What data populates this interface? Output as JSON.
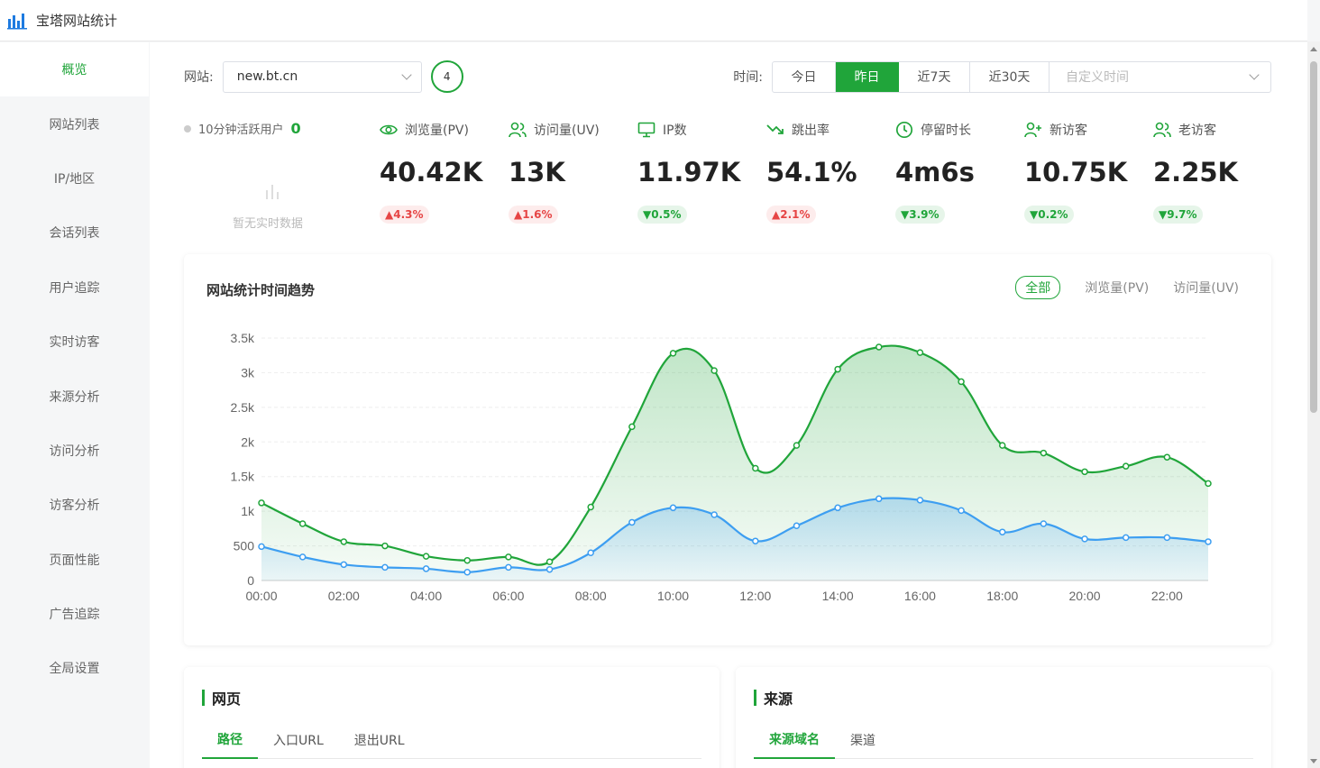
{
  "app": {
    "title": "宝塔网站统计"
  },
  "sidebar": {
    "items": [
      {
        "label": "概览",
        "active": true
      },
      {
        "label": "网站列表"
      },
      {
        "label": "IP/地区"
      },
      {
        "label": "会话列表"
      },
      {
        "label": "用户追踪"
      },
      {
        "label": "实时访客"
      },
      {
        "label": "来源分析"
      },
      {
        "label": "访问分析"
      },
      {
        "label": "访客分析"
      },
      {
        "label": "页面性能"
      },
      {
        "label": "广告追踪"
      },
      {
        "label": "全局设置"
      }
    ]
  },
  "toolbar": {
    "site_label": "网站:",
    "site_value": "new.bt.cn",
    "site_count": "4",
    "time_label": "时间:",
    "time_options": [
      "今日",
      "昨日",
      "近7天",
      "近30天"
    ],
    "time_active": "昨日",
    "custom_placeholder": "自定义时间"
  },
  "live": {
    "label": "10分钟活跃用户",
    "count": "0",
    "no_data": "暂无实时数据"
  },
  "metrics": [
    {
      "label": "浏览量(PV)",
      "icon": "eye-icon",
      "value": "40.42K",
      "change": "▲4.3%",
      "trend": "up"
    },
    {
      "label": "访问量(UV)",
      "icon": "users-icon",
      "value": "13K",
      "change": "▲1.6%",
      "trend": "up"
    },
    {
      "label": "IP数",
      "icon": "monitor-icon",
      "value": "11.97K",
      "change": "▼0.5%",
      "trend": "down"
    },
    {
      "label": "跳出率",
      "icon": "trend-down-icon",
      "value": "54.1%",
      "change": "▲2.1%",
      "trend": "up"
    },
    {
      "label": "停留时长",
      "icon": "clock-icon",
      "value": "4m6s",
      "change": "▼3.9%",
      "trend": "down"
    },
    {
      "label": "新访客",
      "icon": "user-plus-icon",
      "value": "10.75K",
      "change": "▼0.2%",
      "trend": "down"
    },
    {
      "label": "老访客",
      "icon": "users-icon",
      "value": "2.25K",
      "change": "▼9.7%",
      "trend": "down"
    }
  ],
  "chart_card": {
    "title": "网站统计时间趋势",
    "filters": [
      "全部",
      "浏览量(PV)",
      "访问量(UV)"
    ],
    "filter_active": "全部"
  },
  "chart_data": {
    "type": "area",
    "x": [
      "00:00",
      "01:00",
      "02:00",
      "03:00",
      "04:00",
      "05:00",
      "06:00",
      "07:00",
      "08:00",
      "09:00",
      "10:00",
      "11:00",
      "12:00",
      "13:00",
      "14:00",
      "15:00",
      "16:00",
      "17:00",
      "18:00",
      "19:00",
      "20:00",
      "21:00",
      "22:00",
      "23:00"
    ],
    "tick_labels": [
      "00:00",
      "02:00",
      "04:00",
      "06:00",
      "08:00",
      "10:00",
      "12:00",
      "14:00",
      "16:00",
      "18:00",
      "20:00",
      "22:00"
    ],
    "ylim": [
      0,
      3500
    ],
    "y_ticks": [
      "0",
      "500",
      "1k",
      "1.5k",
      "2k",
      "2.5k",
      "3k",
      "3.5k"
    ],
    "grid": true,
    "series": [
      {
        "name": "浏览量(PV)",
        "color": "#20a53a",
        "values": [
          1120,
          820,
          560,
          500,
          350,
          290,
          340,
          270,
          1060,
          2220,
          3280,
          3030,
          1620,
          1950,
          3050,
          3370,
          3290,
          2870,
          1950,
          1840,
          1570,
          1650,
          1780,
          1400
        ]
      },
      {
        "name": "访问量(UV)",
        "color": "#3d9ef1",
        "values": [
          490,
          340,
          230,
          190,
          170,
          120,
          190,
          160,
          400,
          840,
          1050,
          950,
          570,
          790,
          1050,
          1180,
          1160,
          1010,
          700,
          820,
          600,
          620,
          620,
          560
        ]
      }
    ]
  },
  "panels": [
    {
      "title": "网页",
      "tabs": [
        "路径",
        "入口URL",
        "退出URL"
      ],
      "active": "路径"
    },
    {
      "title": "来源",
      "tabs": [
        "来源域名",
        "渠道"
      ],
      "active": "来源域名"
    }
  ],
  "colors": {
    "accent": "#20a53a",
    "uv_line": "#3d9ef1",
    "up": "#e64545"
  }
}
